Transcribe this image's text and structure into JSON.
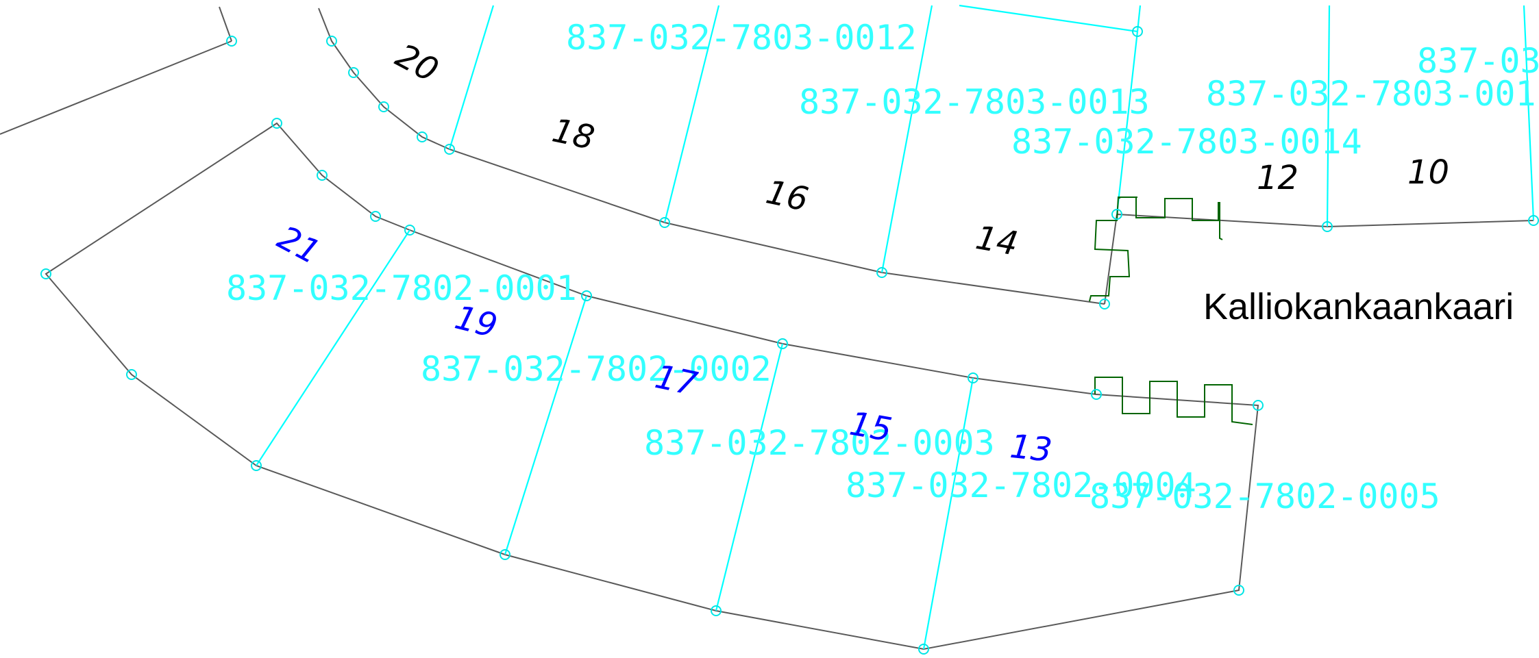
{
  "street": {
    "name": "Kalliokankaankaari"
  },
  "parcels": {
    "north": [
      {
        "id": "837-032-7803-0012"
      },
      {
        "id": "837-032-7803-0013"
      },
      {
        "id": "837-032-7803-0014"
      },
      {
        "id": "837-032-7803-001"
      },
      {
        "id": "837-03"
      }
    ],
    "south": [
      {
        "id": "837-032-7802-0001"
      },
      {
        "id": "837-032-7802-0002"
      },
      {
        "id": "837-032-7802-0003"
      },
      {
        "id": "837-032-7802-0004"
      },
      {
        "id": "837-032-7802-0005"
      }
    ]
  },
  "house_numbers": {
    "north": [
      "20",
      "18",
      "16",
      "14",
      "12",
      "10"
    ],
    "south": [
      "21",
      "19",
      "17",
      "15",
      "13"
    ]
  },
  "colors": {
    "boundary": "#595959",
    "divider": "#00ffff",
    "parcel_id": "#33ffff",
    "north_numbers": "#000000",
    "south_numbers": "#0000ff",
    "access_marker": "#006400"
  }
}
